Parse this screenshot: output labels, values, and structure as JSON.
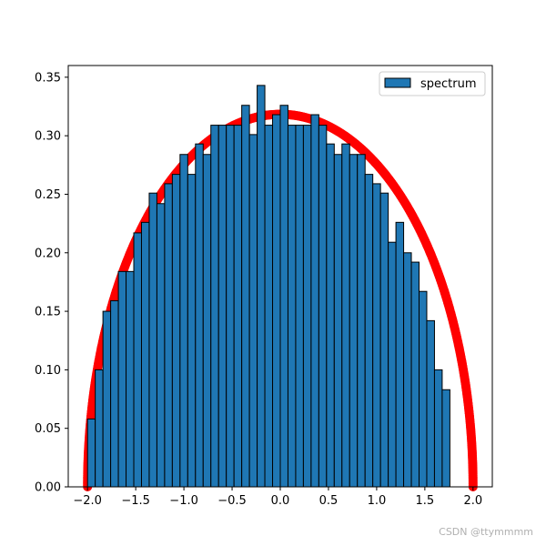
{
  "chart_data": {
    "type": "bar",
    "title": "",
    "xlabel": "",
    "ylabel": "",
    "xlim": [
      -2.2,
      2.2
    ],
    "ylim": [
      0,
      0.36
    ],
    "xticks": [
      -2.0,
      -1.5,
      -1.0,
      -0.5,
      0.0,
      0.5,
      1.0,
      1.5,
      2.0
    ],
    "yticks": [
      0.0,
      0.05,
      0.1,
      0.15,
      0.2,
      0.25,
      0.3,
      0.35
    ],
    "bin_start": -2.0,
    "bin_width": 0.08,
    "series": [
      {
        "name": "spectrum",
        "kind": "histogram",
        "color": "#1f77b4",
        "edge_color": "#000000",
        "values": [
          0.058,
          0.1,
          0.15,
          0.159,
          0.184,
          0.184,
          0.217,
          0.226,
          0.251,
          0.242,
          0.259,
          0.267,
          0.284,
          0.267,
          0.293,
          0.284,
          0.309,
          0.309,
          0.309,
          0.309,
          0.326,
          0.301,
          0.343,
          0.309,
          0.318,
          0.326,
          0.309,
          0.309,
          0.309,
          0.318,
          0.309,
          0.293,
          0.284,
          0.293,
          0.284,
          0.284,
          0.267,
          0.259,
          0.251,
          0.209,
          0.226,
          0.2,
          0.192,
          0.167,
          0.142,
          0.1,
          0.083,
          0.0
        ]
      },
      {
        "name": "",
        "kind": "scatter-curve",
        "color": "#ff0000",
        "function": "semicircle",
        "radius": 2.0
      }
    ],
    "legend": {
      "position": "top-right",
      "entries": [
        "spectrum"
      ]
    }
  },
  "watermark": "CSDN @ttymmmm"
}
